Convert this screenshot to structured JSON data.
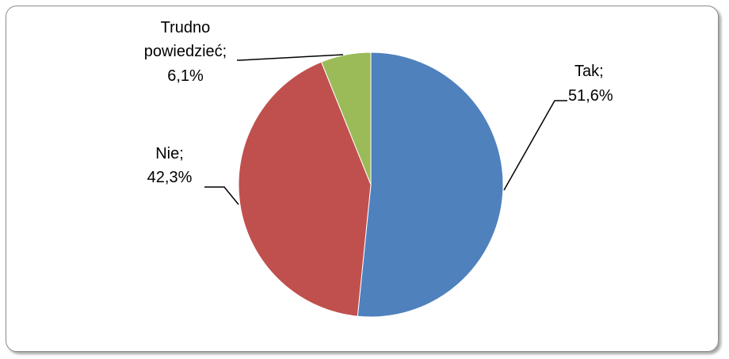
{
  "chart_data": {
    "type": "pie",
    "title": "",
    "slices": [
      {
        "label": "Tak",
        "percent_label": "51,6%",
        "value": 51.6,
        "color": "#4f81bd"
      },
      {
        "label": "Nie",
        "percent_label": "42,3%",
        "value": 42.3,
        "color": "#c0504d"
      },
      {
        "label": "Trudno powiedzieć",
        "label_line1": "Trudno",
        "label_line2": "powiedzieć;",
        "percent_label": "6,1%",
        "value": 6.1,
        "color": "#9bbb59"
      }
    ],
    "legend": "none",
    "data_labels": "outside-with-leader-lines"
  }
}
